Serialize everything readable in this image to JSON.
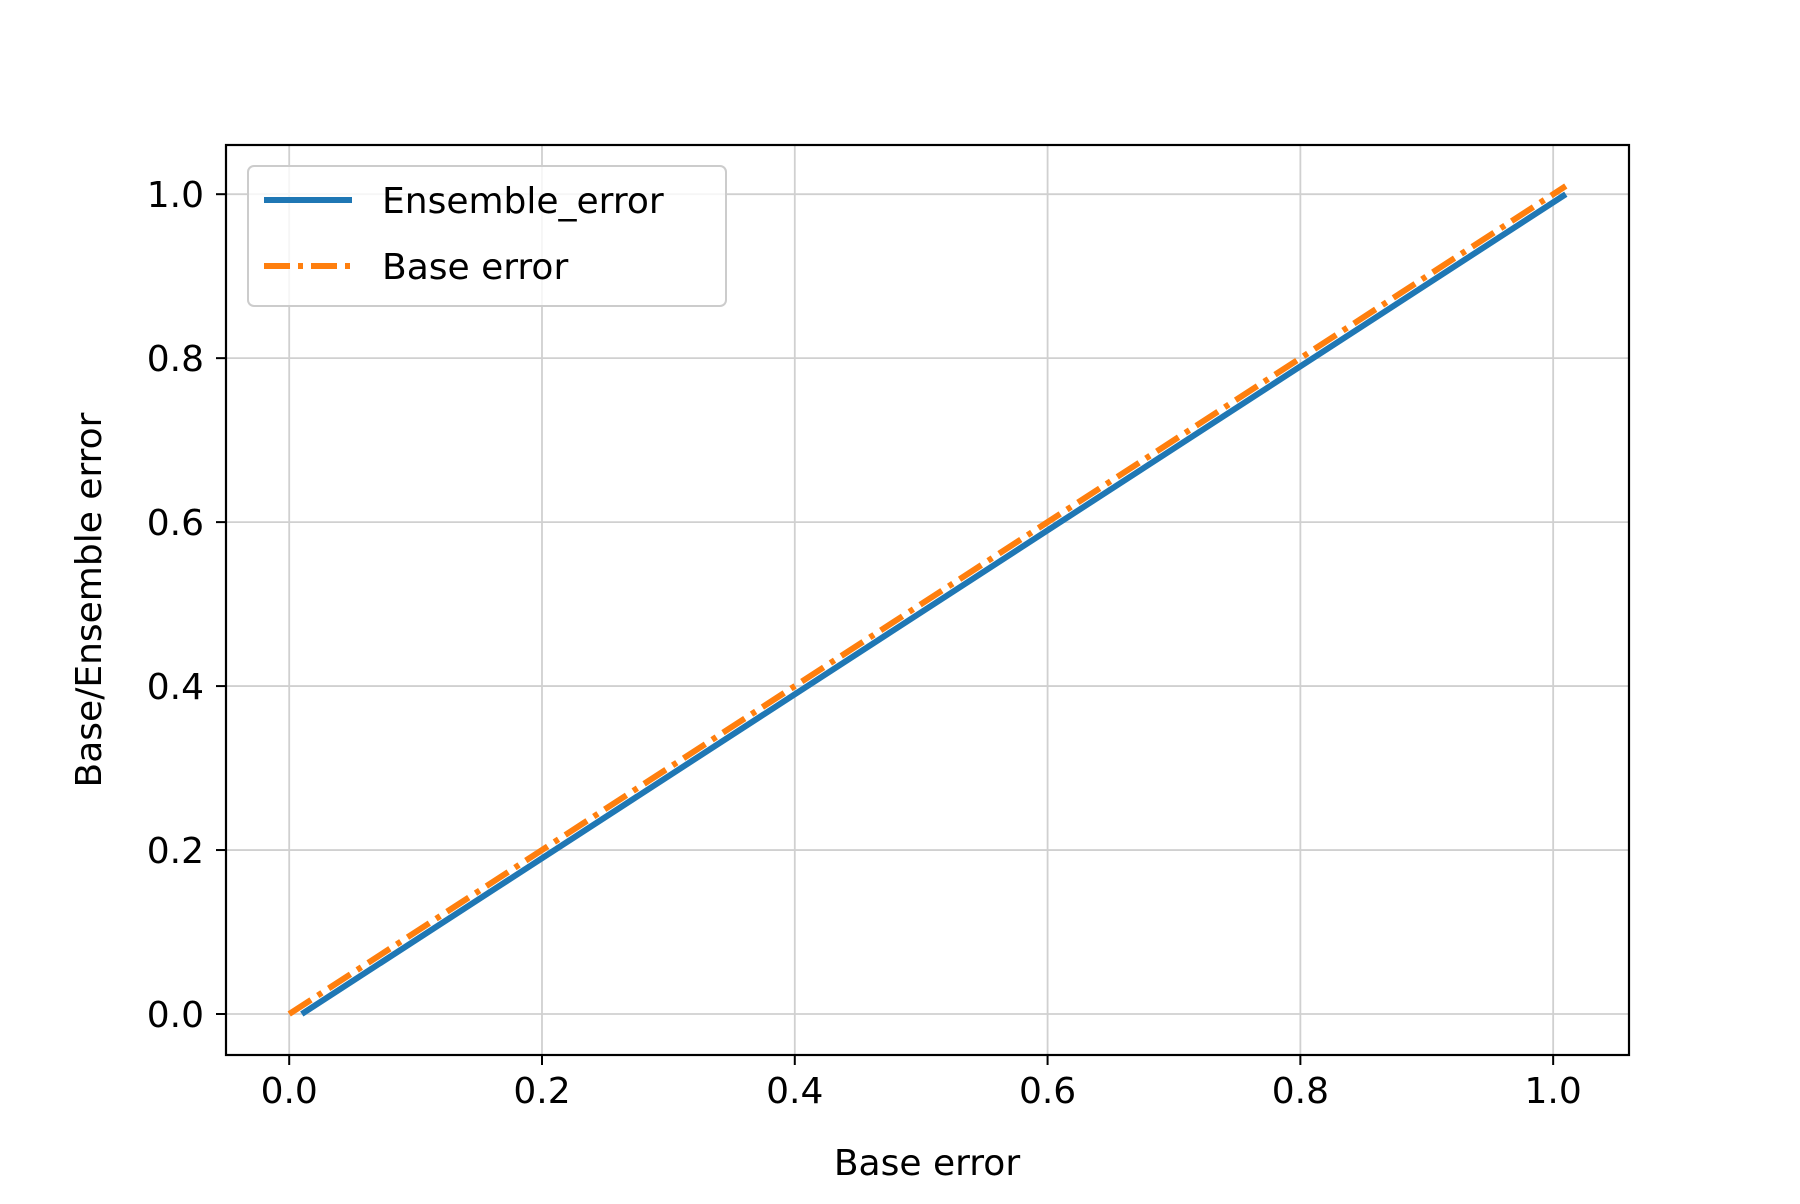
{
  "chart_data": {
    "type": "line",
    "xlabel": "Base error",
    "ylabel": "Base/Ensemble error",
    "xlim": [
      -0.05,
      1.06
    ],
    "ylim": [
      -0.05,
      1.06
    ],
    "grid": true,
    "legend_position": "top-left",
    "x_ticks": [
      0.0,
      0.2,
      0.4,
      0.6,
      0.8,
      1.0
    ],
    "y_ticks": [
      0.0,
      0.2,
      0.4,
      0.6,
      0.8,
      1.0
    ],
    "x_tick_labels": [
      "0.0",
      "0.2",
      "0.4",
      "0.6",
      "0.8",
      "1.0"
    ],
    "y_tick_labels": [
      "0.0",
      "0.2",
      "0.4",
      "0.6",
      "0.8",
      "1.0"
    ],
    "series": [
      {
        "name": "Ensemble_error",
        "color": "#1f77b4",
        "style": "solid",
        "x": [
          0.01,
          1.01
        ],
        "y": [
          0.0,
          1.0
        ]
      },
      {
        "name": "Base error",
        "color": "#ff7f0e",
        "style": "dashdot",
        "x": [
          0.0,
          1.01
        ],
        "y": [
          0.0,
          1.01
        ]
      }
    ]
  }
}
